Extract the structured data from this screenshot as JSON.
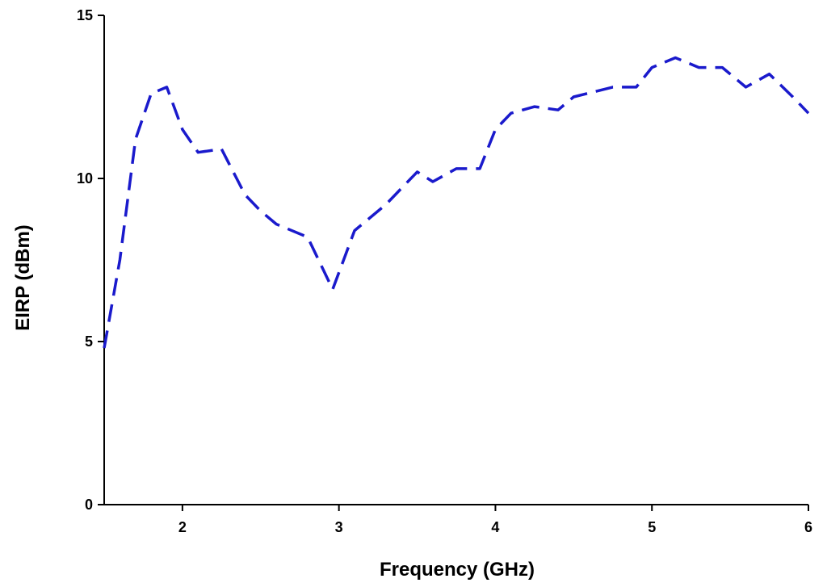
{
  "chart_data": {
    "type": "line",
    "xlabel": "Frequency (GHz)",
    "ylabel": "EIRP (dBm)",
    "xlim": [
      1.5,
      6
    ],
    "ylim": [
      0,
      15
    ],
    "x_ticks": [
      2,
      3,
      4,
      5,
      6
    ],
    "y_ticks": [
      0,
      5,
      10,
      15
    ],
    "grid": false,
    "series": [
      {
        "color": "#1a1acc",
        "line_style": "dashed",
        "x": [
          1.5,
          1.6,
          1.7,
          1.8,
          1.9,
          2.0,
          2.1,
          2.25,
          2.4,
          2.5,
          2.6,
          2.8,
          2.9,
          2.96,
          3.1,
          3.3,
          3.5,
          3.6,
          3.75,
          3.9,
          4.0,
          4.1,
          4.25,
          4.4,
          4.5,
          4.75,
          4.9,
          5.0,
          5.15,
          5.3,
          5.45,
          5.6,
          5.75,
          5.9,
          6.0
        ],
        "y": [
          4.8,
          7.5,
          11.2,
          12.6,
          12.8,
          11.5,
          10.8,
          10.9,
          9.5,
          9.0,
          8.6,
          8.2,
          7.2,
          6.6,
          8.4,
          9.2,
          10.2,
          9.9,
          10.3,
          10.3,
          11.5,
          12.0,
          12.2,
          12.1,
          12.5,
          12.8,
          12.8,
          13.4,
          13.7,
          13.4,
          13.4,
          12.8,
          13.2,
          12.5,
          12.0
        ]
      }
    ]
  }
}
